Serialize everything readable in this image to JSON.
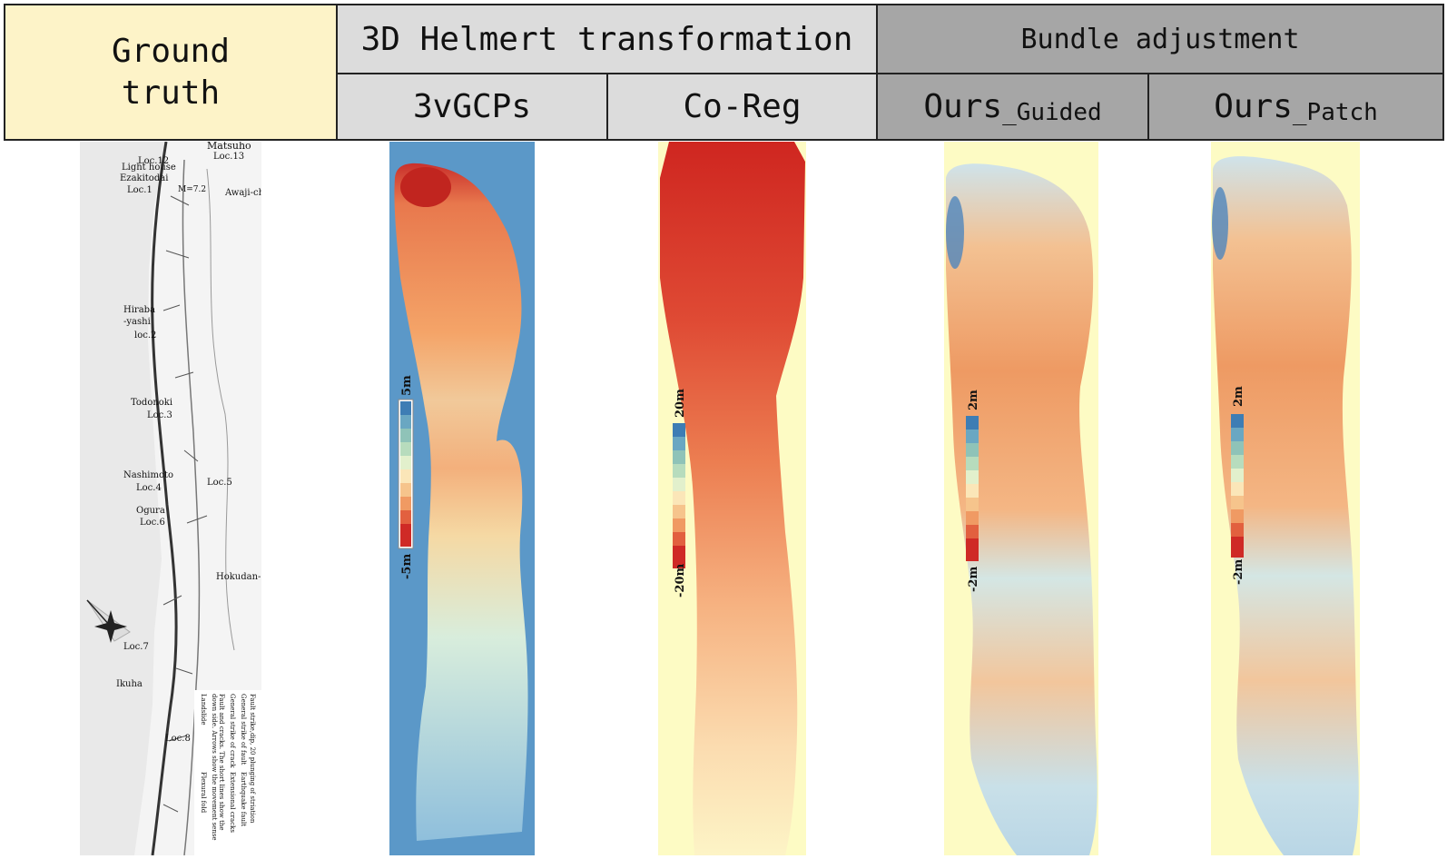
{
  "header": {
    "ground_truth": [
      "Ground",
      "truth"
    ],
    "helmert_group": "3D Helmert transformation",
    "bundle_group": "Bundle adjustment",
    "col_3vgcps": "3vGCPs",
    "col_coreg": "Co-Reg",
    "col_ours_guided_main": "Ours",
    "col_ours_guided_sub": "_Guided",
    "col_ours_patch_main": "Ours",
    "col_ours_patch_sub": "_Patch"
  },
  "colors": {
    "ground_truth_header": "#fdf3c8",
    "helmert_header": "#dcdcdc",
    "bundle_header": "#a6a6a6",
    "map_background_light": "#fdfbc4",
    "map_background_blue": "#5b98c8"
  },
  "ground_truth_map": {
    "labels": [
      "Matsuho",
      "Loc.13",
      "Loc.12",
      "Light house",
      "Ezakitodai",
      "Loc.1",
      "M=7.2",
      "Awaji-ch",
      "Hiraba",
      "-yashi",
      "loc.2",
      "Todonoki",
      "Loc.3",
      "Nashimoto",
      "Loc.4",
      "Loc.5",
      "Ogura",
      "Loc.6",
      "Hokudan-",
      "Loc.7",
      "Ikuha",
      "Loc.8"
    ],
    "legend": [
      "Fault strike,dip, 20 plunging of striation",
      "General strike of fault",
      "Earthquake fault",
      "General strike of crack",
      "Extensional cracks",
      "Fault and cracks. The short lines show the",
      "down side. Arrows show the movement sense",
      "Landslide",
      "Flexural fold"
    ]
  },
  "colorbars": [
    {
      "panel": "3vGCPs",
      "max_label": "5m",
      "min_label": "-5m"
    },
    {
      "panel": "Co-Reg",
      "max_label": "20m",
      "min_label": "-20m"
    },
    {
      "panel": "Ours_Guided",
      "max_label": "2m",
      "min_label": "-2m"
    },
    {
      "panel": "Ours_Patch",
      "max_label": "2m",
      "min_label": "-2m"
    }
  ]
}
